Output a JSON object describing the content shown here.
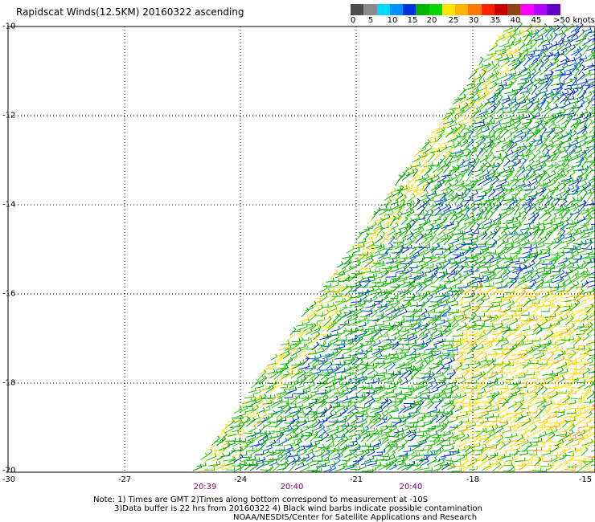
{
  "title": "Rapidscat Winds(12.5KM) 20160322 ascending",
  "colorbar": {
    "colors": [
      "#4c4c4c",
      "#8a8a8a",
      "#00d8ff",
      "#0090ff",
      "#0032e0",
      "#00b400",
      "#00d800",
      "#ffe600",
      "#ffb400",
      "#ff7800",
      "#ff2000",
      "#c80000",
      "#8b4513",
      "#ff00ff",
      "#b400ff",
      "#6400c8"
    ],
    "labels": [
      "0",
      "5",
      "10",
      "15",
      "20",
      "25",
      "30",
      "35",
      "40",
      "45",
      ">50 knots"
    ]
  },
  "map": {
    "lat_labels": [
      "-10",
      "-12",
      "-14",
      "-16",
      "-18",
      "-20"
    ],
    "lon_labels": [
      "-30",
      "-27",
      "-24",
      "-21",
      "-18",
      "-15"
    ],
    "lat_range": [
      -20,
      -10
    ],
    "lon_range": [
      -30,
      -15
    ],
    "time_labels": [
      "20:39",
      "20:40",
      "20:40"
    ],
    "grid": "dotted"
  },
  "notes": [
    "Note: 1) Times are GMT 2)Times along bottom correspond to measurement at -10S",
    "3)Data buffer is 22 hrs from 20160322 4) Black wind barbs indicate possible contamination",
    "NOAA/NESDIS/Center for Satellite Applications and Research"
  ]
}
